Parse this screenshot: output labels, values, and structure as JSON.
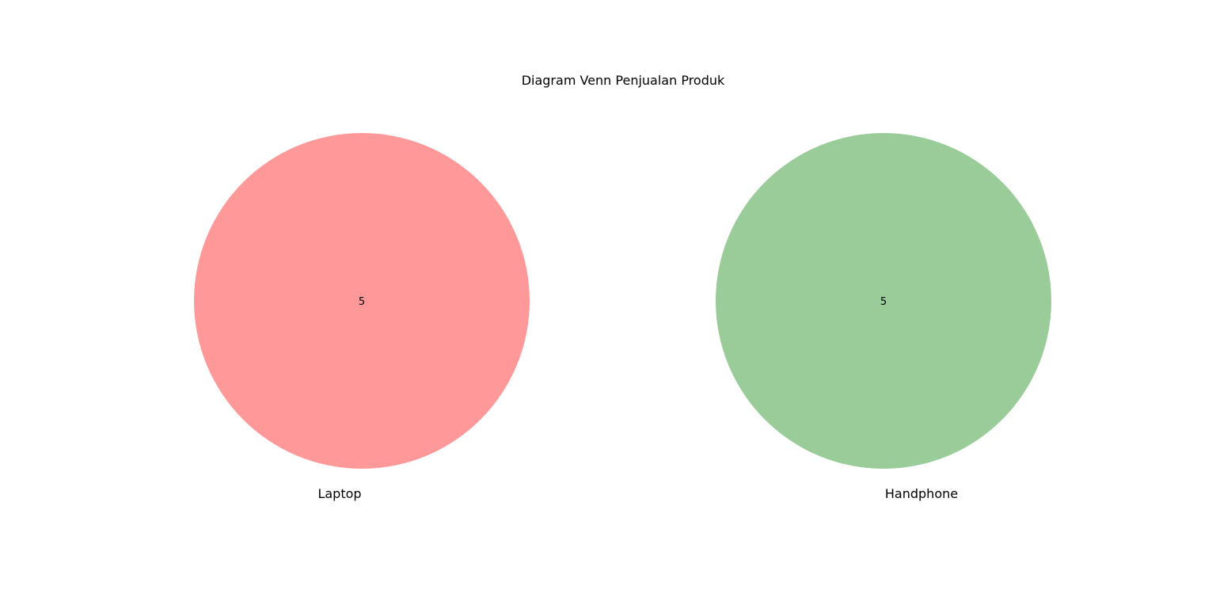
{
  "title": "Diagram Venn Penjualan Produk",
  "sets": [
    {
      "name": "Laptop",
      "only_count": "5",
      "color": "#ff9999"
    },
    {
      "name": "Handphone",
      "only_count": "5",
      "color": "#99cc99"
    }
  ],
  "intersection_count": "0",
  "colors": {
    "background": "#ffffff",
    "text": "#000000"
  }
}
